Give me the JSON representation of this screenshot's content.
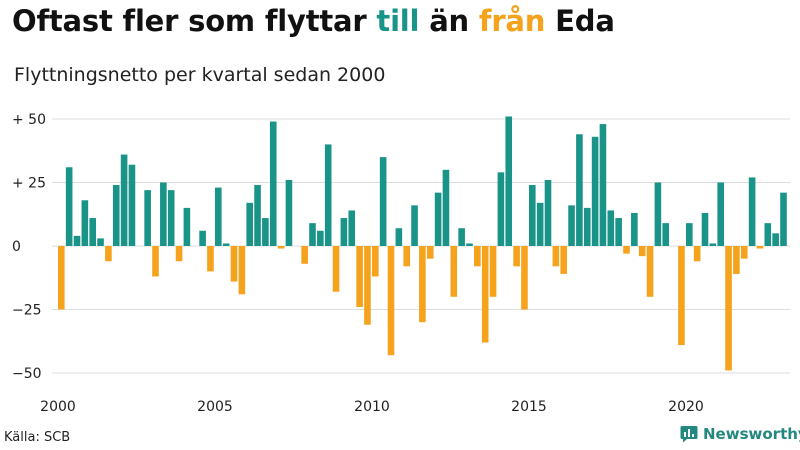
{
  "header": {
    "title_part1": "Oftast fler som flyttar ",
    "title_in": "till",
    "title_mid": " än ",
    "title_out": "från",
    "title_end": " Eda",
    "subtitle": "Flyttningsnetto per kvartal sedan 2000"
  },
  "footer": {
    "source": "Källa: SCB",
    "brand": "Newsworthy",
    "brand_icon": "bar-chart-speech-bubble-icon"
  },
  "colors": {
    "positive": "#1a9488",
    "negative": "#f5a21c",
    "title_in": "#1a9488",
    "title_out": "#f5a21c",
    "grid": "#dddddd",
    "axis_text": "#222222"
  },
  "chart_data": {
    "type": "bar",
    "title": "Oftast fler som flyttar till än från Eda",
    "subtitle": "Flyttningsnetto per kvartal sedan 2000",
    "xlabel": "",
    "ylabel": "",
    "x_start": "2000 Q1",
    "x_ticks": [
      "2000",
      "2005",
      "2010",
      "2015",
      "2020"
    ],
    "y_ticks": [
      {
        "value": 50,
        "label": "+ 50"
      },
      {
        "value": 25,
        "label": "+ 25"
      },
      {
        "value": 0,
        "label": "0"
      },
      {
        "value": -25,
        "label": "−25"
      },
      {
        "value": -50,
        "label": "−50"
      }
    ],
    "ylim": [
      -55,
      52
    ],
    "grid": true,
    "series": [
      {
        "values": [
          -25,
          31,
          4,
          18,
          11,
          3,
          -6,
          24,
          36,
          32,
          0,
          22,
          -12,
          25,
          22,
          -6,
          15,
          0,
          6,
          -10,
          23,
          1,
          -14,
          -19,
          17,
          24,
          11,
          49,
          -1,
          26,
          0,
          -7,
          9,
          6,
          40,
          -18,
          11,
          14,
          -24,
          -31,
          -12,
          35,
          -43,
          7,
          -8,
          16,
          -30,
          -5,
          21,
          30,
          -20,
          7,
          1,
          -8,
          -38,
          -20,
          29,
          51,
          -8,
          -25,
          24,
          17,
          26,
          -8,
          -11,
          16,
          44,
          15,
          43,
          48,
          14,
          11,
          -3,
          13,
          -4,
          -20,
          25,
          9,
          0,
          -39,
          9,
          -6,
          13,
          1,
          25,
          -49,
          -11,
          -5,
          27,
          -1,
          9,
          5,
          21
        ]
      }
    ]
  }
}
